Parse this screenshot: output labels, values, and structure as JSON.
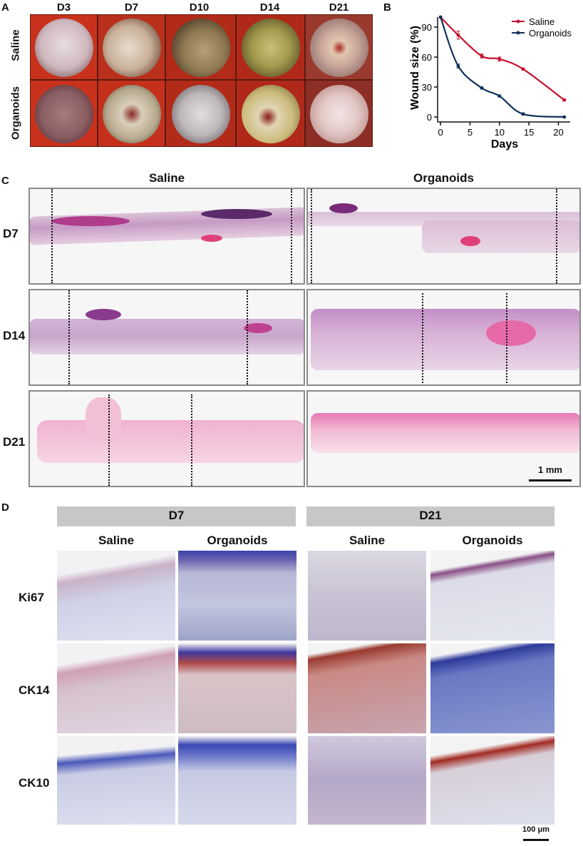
{
  "panels": {
    "a": "A",
    "b": "B",
    "c": "C",
    "d": "D"
  },
  "panel_a": {
    "days": [
      "D3",
      "D7",
      "D10",
      "D14",
      "D21"
    ],
    "rows": [
      "Saline",
      "Organoids"
    ]
  },
  "chart_data": {
    "type": "line",
    "xlabel": "Days",
    "ylabel": "Wound size (%)",
    "x": [
      0,
      3,
      7,
      10,
      14,
      21
    ],
    "xlim": [
      -0.5,
      22
    ],
    "ylim": [
      -5,
      100
    ],
    "xticks": [
      0,
      5,
      10,
      15,
      20
    ],
    "yticks": [
      0,
      30,
      60,
      90
    ],
    "legend_position": "top-right",
    "series": [
      {
        "name": "Saline",
        "color": "#c8102e",
        "values": [
          100,
          82,
          61,
          58,
          48,
          17
        ],
        "errors": [
          0,
          4,
          2,
          2,
          1,
          1
        ]
      },
      {
        "name": "Organoids",
        "color": "#12305a",
        "values": [
          100,
          51,
          29,
          21,
          3,
          0
        ],
        "errors": [
          0,
          2,
          1,
          1,
          1,
          0
        ]
      }
    ]
  },
  "panel_c": {
    "columns": [
      "Saline",
      "Organoids"
    ],
    "rows": [
      "D7",
      "D14",
      "D21"
    ],
    "scale_bar": "1 mm"
  },
  "panel_d": {
    "groups": [
      "D7",
      "D21"
    ],
    "subcolumns": [
      "Saline",
      "Organoids",
      "Saline",
      "Organoids"
    ],
    "markers": [
      "Ki67",
      "CK14",
      "CK10"
    ],
    "scale_bar": "100 μm"
  }
}
